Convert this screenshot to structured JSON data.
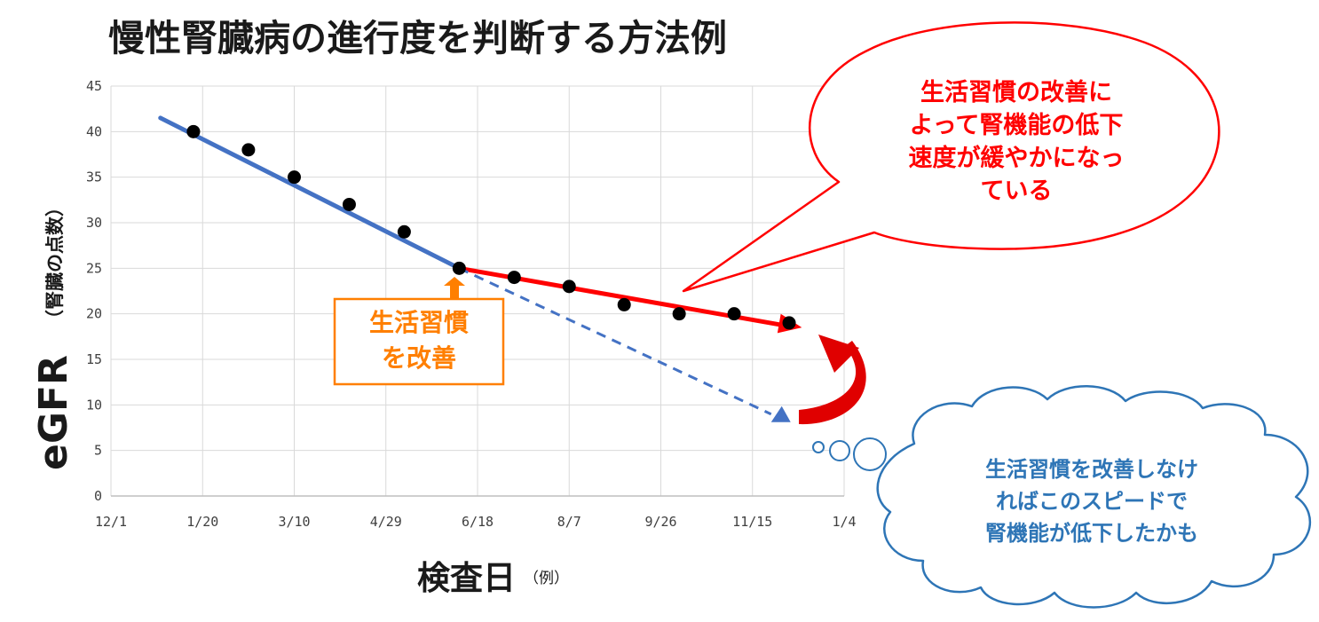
{
  "chart_data": {
    "type": "scatter",
    "title": "慢性腎臓病の進行度を判断する方法例",
    "xlabel": "検査日",
    "xlabel_note": "（例）",
    "ylabel": "eGFR",
    "ylabel_note": "（腎臓の点数）",
    "ylim": [
      0,
      45
    ],
    "yticks": [
      0,
      5,
      10,
      15,
      20,
      25,
      30,
      35,
      40,
      45
    ],
    "xlim": [
      "12/1",
      "1/4"
    ],
    "xtick_labels": [
      "12/1",
      "1/20",
      "3/10",
      "4/29",
      "6/18",
      "8/7",
      "9/26",
      "11/15",
      "1/4"
    ],
    "grid": true,
    "points": [
      {
        "x": "1/15",
        "y": 40
      },
      {
        "x": "2/14",
        "y": 38
      },
      {
        "x": "3/10",
        "y": 35
      },
      {
        "x": "4/9",
        "y": 32
      },
      {
        "x": "5/9",
        "y": 29
      },
      {
        "x": "6/8",
        "y": 25
      },
      {
        "x": "7/8",
        "y": 24
      },
      {
        "x": "8/7",
        "y": 23
      },
      {
        "x": "9/6",
        "y": 21
      },
      {
        "x": "10/6",
        "y": 20
      },
      {
        "x": "11/5",
        "y": 20
      },
      {
        "x": "12/5",
        "y": 19
      }
    ],
    "trend_lines": [
      {
        "start": {
          "x": "12/28",
          "y": 41.5
        },
        "end": {
          "x": "6/8",
          "y": 25
        },
        "color": "#4472c4",
        "style": "solid"
      },
      {
        "start": {
          "x": "6/8",
          "y": 25
        },
        "end": {
          "x": "12/10",
          "y": 18.5
        },
        "color": "#ff0000",
        "style": "solid-arrow"
      },
      {
        "start": {
          "x": "6/8",
          "y": 25
        },
        "end": {
          "x": "11/30",
          "y": 8.5
        },
        "color": "#4472c4",
        "style": "dashed-arrow"
      }
    ],
    "annotations": {
      "intervention": "生活習慣\nを改善",
      "speech_bubble": [
        "生活習慣の改善に",
        "よって腎機能の低下",
        "速度が緩やかになっ",
        "ている"
      ],
      "thought_cloud": [
        "生活習慣を改善しなけ",
        "ればこのスピードで",
        "腎機能が低下したかも"
      ]
    },
    "colors": {
      "blue_line": "#4472c4",
      "red_line": "#ff0000",
      "orange_box": "#ff7f00",
      "cloud_text": "#2e75b6",
      "cloud_border": "#2e75b6",
      "points": "#000000"
    }
  }
}
